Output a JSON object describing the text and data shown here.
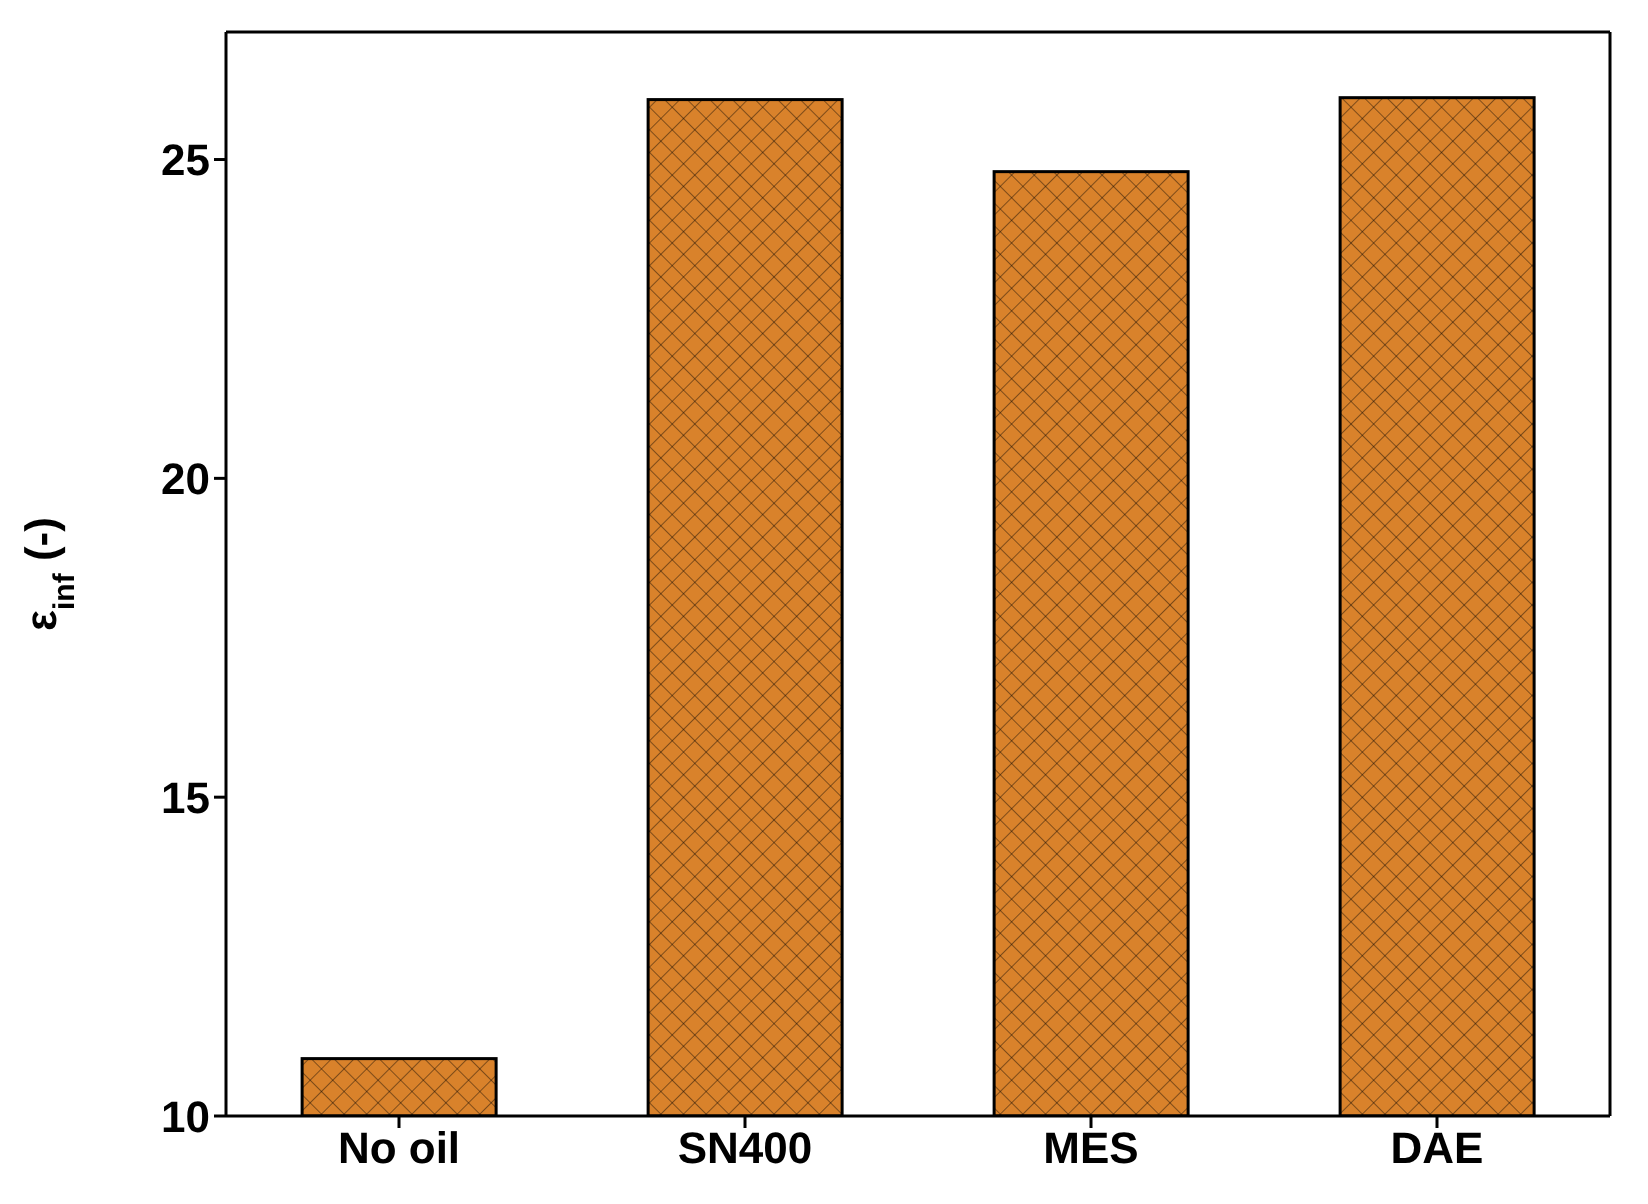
{
  "chart_data": {
    "type": "bar",
    "ylabel": "ε$_{inf}$ (-)",
    "categories": [
      "No oil",
      "SN400",
      "MES",
      "DAE"
    ],
    "values": [
      10.9,
      25.94,
      24.81,
      25.97
    ],
    "color": "#d9822b",
    "ylim": [
      10,
      27
    ],
    "yticks": [
      10,
      15,
      20,
      25
    ],
    "grid": false
  }
}
